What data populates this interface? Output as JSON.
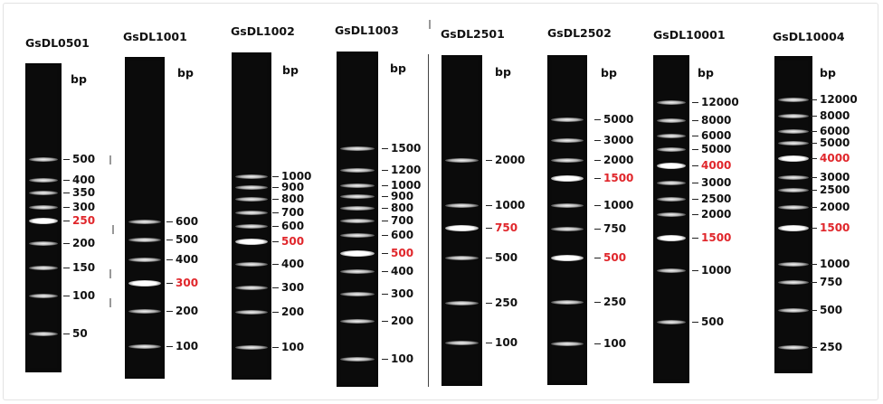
{
  "units": "bp",
  "colors": {
    "highlight": "#e0262b",
    "gel": "#0b0b0b",
    "band": "#ffffff"
  },
  "ladders": [
    {
      "name": "GsDL0501",
      "labels": [
        {
          "text": "500"
        },
        {
          "text": "400"
        },
        {
          "text": "350"
        },
        {
          "text": "300"
        },
        {
          "text": "250",
          "highlight": true
        },
        {
          "text": "200"
        },
        {
          "text": "150"
        },
        {
          "text": "100"
        },
        {
          "text": "50"
        }
      ]
    },
    {
      "name": "GsDL1001",
      "labels": [
        {
          "text": "600"
        },
        {
          "text": "500"
        },
        {
          "text": "400"
        },
        {
          "text": "300",
          "highlight": true
        },
        {
          "text": "200"
        },
        {
          "text": "100"
        }
      ]
    },
    {
      "name": "GsDL1002",
      "labels": [
        {
          "text": "1000"
        },
        {
          "text": "900"
        },
        {
          "text": "800"
        },
        {
          "text": "700"
        },
        {
          "text": "600"
        },
        {
          "text": "500",
          "highlight": true
        },
        {
          "text": "400"
        },
        {
          "text": "300"
        },
        {
          "text": "200"
        },
        {
          "text": "100"
        }
      ]
    },
    {
      "name": "GsDL1003",
      "labels": [
        {
          "text": "1500"
        },
        {
          "text": "1200"
        },
        {
          "text": "1000"
        },
        {
          "text": "900"
        },
        {
          "text": "800"
        },
        {
          "text": "700"
        },
        {
          "text": "600"
        },
        {
          "text": "500",
          "highlight": true
        },
        {
          "text": "400"
        },
        {
          "text": "300"
        },
        {
          "text": "200"
        },
        {
          "text": "100"
        }
      ]
    },
    {
      "name": "GsDL2501",
      "labels": [
        {
          "text": "2000"
        },
        {
          "text": "1000"
        },
        {
          "text": "750",
          "highlight": true
        },
        {
          "text": "500"
        },
        {
          "text": "250"
        },
        {
          "text": "100"
        }
      ]
    },
    {
      "name": "GsDL2502",
      "labels": [
        {
          "text": "5000"
        },
        {
          "text": "3000"
        },
        {
          "text": "2000"
        },
        {
          "text": "1500",
          "highlight": true
        },
        {
          "text": "1000"
        },
        {
          "text": "750"
        },
        {
          "text": "500",
          "highlight": true
        },
        {
          "text": "250"
        },
        {
          "text": "100"
        }
      ]
    },
    {
      "name": "GsDL10001",
      "labels": [
        {
          "text": "12000"
        },
        {
          "text": "8000"
        },
        {
          "text": "6000"
        },
        {
          "text": "5000"
        },
        {
          "text": "4000",
          "highlight": true
        },
        {
          "text": "3000"
        },
        {
          "text": "2500"
        },
        {
          "text": "2000"
        },
        {
          "text": "1500",
          "highlight": true
        },
        {
          "text": "1000"
        },
        {
          "text": "500"
        }
      ]
    },
    {
      "name": "GsDL10004",
      "labels": [
        {
          "text": "12000"
        },
        {
          "text": "8000"
        },
        {
          "text": "6000"
        },
        {
          "text": "5000"
        },
        {
          "text": "4000",
          "highlight": true
        },
        {
          "text": "3000"
        },
        {
          "text": "2500"
        },
        {
          "text": "2000"
        },
        {
          "text": "1500",
          "highlight": true
        },
        {
          "text": "1000"
        },
        {
          "text": "750"
        },
        {
          "text": "500"
        },
        {
          "text": "250"
        }
      ]
    }
  ]
}
